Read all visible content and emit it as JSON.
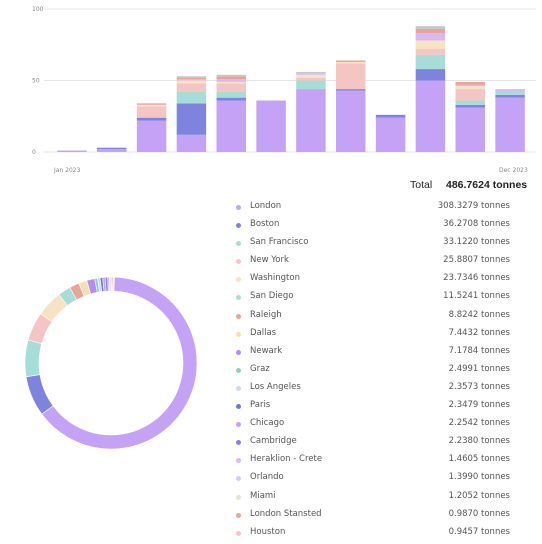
{
  "total": {
    "label": "Total",
    "value": "486.7624 tonnes"
  },
  "chart_data": [
    {
      "type": "bar",
      "stacked": true,
      "x_start_label": "Jan 2023",
      "x_end_label": "Dec 2023",
      "ylim": [
        0,
        100
      ],
      "y_ticks": [
        "0",
        "50",
        "100"
      ],
      "categories": [
        "1",
        "2",
        "3",
        "4",
        "5",
        "6",
        "7",
        "8",
        "9",
        "10",
        "11",
        "12"
      ],
      "series": [
        {
          "color": "#c4a2f5",
          "values": [
            1,
            2,
            22,
            12,
            36,
            36,
            44,
            43,
            24,
            50,
            31,
            38
          ]
        },
        {
          "color": "#7e84dd",
          "values": [
            0,
            1,
            2,
            22,
            2,
            0,
            0,
            1,
            2,
            8,
            2,
            2
          ]
        },
        {
          "color": "#a6ddd6",
          "values": [
            0,
            0,
            0,
            8,
            4,
            0,
            6,
            0,
            0,
            10,
            3,
            2
          ]
        },
        {
          "color": "#f4c5c2",
          "values": [
            0,
            0,
            8,
            6,
            6,
            0,
            2,
            18,
            0,
            4,
            8,
            0
          ]
        },
        {
          "color": "#f7e3c4",
          "values": [
            0,
            0,
            1,
            2,
            1,
            0,
            2,
            1,
            0,
            6,
            2,
            0
          ]
        },
        {
          "color": "#d9b9f5",
          "values": [
            0,
            0,
            0,
            1,
            2,
            0,
            1,
            0,
            0,
            5,
            1,
            2
          ]
        },
        {
          "color": "#e6a598",
          "values": [
            0,
            0,
            1,
            1,
            2,
            0,
            0,
            1,
            0,
            3,
            2,
            0
          ]
        },
        {
          "color": "#c7c7c7",
          "values": [
            0,
            0,
            0,
            1,
            1,
            0,
            1,
            0,
            0,
            2,
            0,
            0
          ]
        }
      ]
    },
    {
      "type": "pie",
      "donut": true,
      "labels": [
        "London",
        "Boston",
        "San Francisco",
        "New York",
        "Washington",
        "San Diego",
        "Raleigh",
        "Dallas",
        "Newark",
        "Graz",
        "Los Angeles",
        "Paris",
        "Chicago",
        "Cambridge",
        "Heraklion - Crete",
        "Orlando",
        "Miami",
        "London Stansted",
        "Houston"
      ],
      "values": [
        308.3279,
        36.2708,
        33.122,
        25.8807,
        23.7346,
        11.5241,
        8.8242,
        7.4432,
        7.1784,
        2.4991,
        2.3573,
        2.3479,
        2.2542,
        2.238,
        1.4605,
        1.399,
        1.2052,
        0.987,
        0.9457
      ],
      "colors": [
        "#c4a2f5",
        "#7e84dd",
        "#a6ddd6",
        "#f4c5c2",
        "#f7e3c4",
        "#a6ddd6",
        "#e6a598",
        "#f5e0b0",
        "#b48df0",
        "#8fd0c2",
        "#cfd8f0",
        "#6f79cf",
        "#c4a2f5",
        "#8b7fe0",
        "#d9b9f5",
        "#d0d0f0",
        "#e8e4d2",
        "#e6a598",
        "#f4c5c2"
      ]
    }
  ],
  "legend": [
    {
      "name": "London",
      "value": "308.3279 tonnes",
      "color": "#c4a2f5"
    },
    {
      "name": "Boston",
      "value": "36.2708 tonnes",
      "color": "#7e84dd"
    },
    {
      "name": "San Francisco",
      "value": "33.1220 tonnes",
      "color": "#a6ddd6"
    },
    {
      "name": "New York",
      "value": "25.8807 tonnes",
      "color": "#f4c5c2"
    },
    {
      "name": "Washington",
      "value": "23.7346 tonnes",
      "color": "#f7e3c4"
    },
    {
      "name": "San Diego",
      "value": "11.5241 tonnes",
      "color": "#a6ddd6"
    },
    {
      "name": "Raleigh",
      "value": "8.8242 tonnes",
      "color": "#e6a598"
    },
    {
      "name": "Dallas",
      "value": "7.4432 tonnes",
      "color": "#f5e0b0"
    },
    {
      "name": "Newark",
      "value": "7.1784 tonnes",
      "color": "#b48df0"
    },
    {
      "name": "Graz",
      "value": "2.4991 tonnes",
      "color": "#8fd0c2"
    },
    {
      "name": "Los Angeles",
      "value": "2.3573 tonnes",
      "color": "#cfd8f0"
    },
    {
      "name": "Paris",
      "value": "2.3479 tonnes",
      "color": "#6f79cf"
    },
    {
      "name": "Chicago",
      "value": "2.2542 tonnes",
      "color": "#c4a2f5"
    },
    {
      "name": "Cambridge",
      "value": "2.2380 tonnes",
      "color": "#8b7fe0"
    },
    {
      "name": "Heraklion - Crete",
      "value": "1.4605 tonnes",
      "color": "#d9b9f5"
    },
    {
      "name": "Orlando",
      "value": "1.3990 tonnes",
      "color": "#d0d0f0"
    },
    {
      "name": "Miami",
      "value": "1.2052 tonnes",
      "color": "#e8e4d2"
    },
    {
      "name": "London Stansted",
      "value": "0.9870 tonnes",
      "color": "#e6a598"
    },
    {
      "name": "Houston",
      "value": "0.9457 tonnes",
      "color": "#f4c5c2"
    }
  ]
}
